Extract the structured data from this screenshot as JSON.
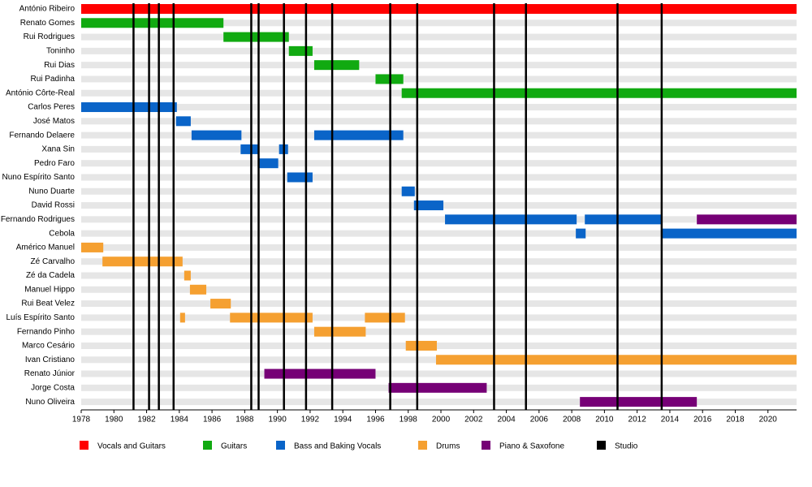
{
  "chart_data": {
    "type": "timeline",
    "xlim": [
      1978,
      2021.75
    ],
    "xticks": [
      1978,
      1980,
      1982,
      1984,
      1986,
      1988,
      1990,
      1992,
      1994,
      1996,
      1998,
      2000,
      2002,
      2004,
      2006,
      2008,
      2010,
      2012,
      2014,
      2016,
      2018,
      2020
    ],
    "series": [
      {
        "name": "Vocals and Guitars",
        "color": "#ff0000"
      },
      {
        "name": "Guitars",
        "color": "#11aa11"
      },
      {
        "name": "Bass and Baking Vocals",
        "color": "#0a64c8"
      },
      {
        "name": "Drums",
        "color": "#f5a031"
      },
      {
        "name": "Piano & Saxofone",
        "color": "#760076"
      },
      {
        "name": "Studio",
        "color": "#000000",
        "x": [
          1981.2,
          1982.15,
          1982.75,
          1983.65,
          1988.4,
          1988.85,
          1990.4,
          1991.75,
          1993.35,
          1996.9,
          1998.55,
          2003.25,
          2005.2,
          2010.8,
          2013.5
        ]
      }
    ],
    "rows": [
      {
        "name": "António Ribeiro",
        "spans": [
          {
            "role": "Vocals and Guitars",
            "start": 1978,
            "end": 2021.75
          }
        ]
      },
      {
        "name": "Renato Gomes",
        "spans": [
          {
            "role": "Guitars",
            "start": 1978,
            "end": 1986.7
          }
        ]
      },
      {
        "name": "Rui Rodrigues",
        "spans": [
          {
            "role": "Guitars",
            "start": 1986.7,
            "end": 1990.7
          }
        ]
      },
      {
        "name": "Toninho",
        "spans": [
          {
            "role": "Guitars",
            "start": 1990.7,
            "end": 1992.15
          }
        ]
      },
      {
        "name": "Rui Dias",
        "spans": [
          {
            "role": "Guitars",
            "start": 1992.25,
            "end": 1995
          }
        ]
      },
      {
        "name": "Rui Padinha",
        "spans": [
          {
            "role": "Guitars",
            "start": 1996,
            "end": 1997.7
          }
        ]
      },
      {
        "name": "António Côrte-Real",
        "spans": [
          {
            "role": "Guitars",
            "start": 1997.6,
            "end": 2021.75
          }
        ]
      },
      {
        "name": "Carlos Peres",
        "spans": [
          {
            "role": "Bass and Baking Vocals",
            "start": 1978,
            "end": 1983.85
          }
        ]
      },
      {
        "name": "José Matos",
        "spans": [
          {
            "role": "Bass and Baking Vocals",
            "start": 1983.8,
            "end": 1984.7
          }
        ]
      },
      {
        "name": "Fernando Delaere",
        "spans": [
          {
            "role": "Bass and Baking Vocals",
            "start": 1984.75,
            "end": 1987.8
          },
          {
            "role": "Bass and Baking Vocals",
            "start": 1992.25,
            "end": 1997.7
          }
        ]
      },
      {
        "name": "Xana Sin",
        "spans": [
          {
            "role": "Bass and Baking Vocals",
            "start": 1987.75,
            "end": 1988.8
          },
          {
            "role": "Bass and Baking Vocals",
            "start": 1990.1,
            "end": 1990.65
          }
        ]
      },
      {
        "name": "Pedro Faro",
        "spans": [
          {
            "role": "Bass and Baking Vocals",
            "start": 1988.8,
            "end": 1990.05
          }
        ]
      },
      {
        "name": "Nuno Espírito Santo",
        "spans": [
          {
            "role": "Bass and Baking Vocals",
            "start": 1990.6,
            "end": 1992.15
          }
        ]
      },
      {
        "name": "Nuno Duarte",
        "spans": [
          {
            "role": "Bass and Baking Vocals",
            "start": 1997.6,
            "end": 1998.4
          }
        ]
      },
      {
        "name": "David Rossi",
        "spans": [
          {
            "role": "Bass and Baking Vocals",
            "start": 1998.35,
            "end": 2000.15
          }
        ]
      },
      {
        "name": "Fernando Rodrigues",
        "spans": [
          {
            "role": "Bass and Baking Vocals",
            "start": 2000.25,
            "end": 2008.3
          },
          {
            "role": "Bass and Baking Vocals",
            "start": 2008.8,
            "end": 2013.55
          },
          {
            "role": "Piano & Saxofone",
            "start": 2015.65,
            "end": 2021.75
          }
        ]
      },
      {
        "name": "Cebola",
        "spans": [
          {
            "role": "Bass and Baking Vocals",
            "start": 2008.25,
            "end": 2008.85
          },
          {
            "role": "Bass and Baking Vocals",
            "start": 2013.55,
            "end": 2021.75
          }
        ]
      },
      {
        "name": "Américo Manuel",
        "spans": [
          {
            "role": "Drums",
            "start": 1978,
            "end": 1979.35
          }
        ]
      },
      {
        "name": "Zé Carvalho",
        "spans": [
          {
            "role": "Drums",
            "start": 1979.3,
            "end": 1984.2
          }
        ]
      },
      {
        "name": "Zé da Cadela",
        "spans": [
          {
            "role": "Drums",
            "start": 1984.3,
            "end": 1984.7
          }
        ]
      },
      {
        "name": "Manuel Hippo",
        "spans": [
          {
            "role": "Drums",
            "start": 1984.65,
            "end": 1985.65
          }
        ]
      },
      {
        "name": "Rui Beat Velez",
        "spans": [
          {
            "role": "Drums",
            "start": 1985.9,
            "end": 1987.15
          }
        ]
      },
      {
        "name": "Luís Espírito Santo",
        "spans": [
          {
            "role": "Drums",
            "start": 1984.05,
            "end": 1984.35
          },
          {
            "role": "Drums",
            "start": 1987.1,
            "end": 1992.15
          },
          {
            "role": "Drums",
            "start": 1995.35,
            "end": 1997.8
          }
        ]
      },
      {
        "name": "Fernando Pinho",
        "spans": [
          {
            "role": "Drums",
            "start": 1992.25,
            "end": 1995.4
          }
        ]
      },
      {
        "name": "Marco Cesário",
        "spans": [
          {
            "role": "Drums",
            "start": 1997.85,
            "end": 1999.75
          }
        ]
      },
      {
        "name": "Ivan Cristiano",
        "spans": [
          {
            "role": "Drums",
            "start": 1999.7,
            "end": 2021.75
          }
        ]
      },
      {
        "name": "Renato Júnior",
        "spans": [
          {
            "role": "Piano & Saxofone",
            "start": 1989.2,
            "end": 1996
          }
        ]
      },
      {
        "name": "Jorge Costa",
        "spans": [
          {
            "role": "Piano & Saxofone",
            "start": 1996.8,
            "end": 2002.8
          }
        ]
      },
      {
        "name": "Nuno Oliveira",
        "spans": [
          {
            "role": "Piano & Saxofone",
            "start": 2008.5,
            "end": 2015.65
          }
        ]
      }
    ]
  }
}
